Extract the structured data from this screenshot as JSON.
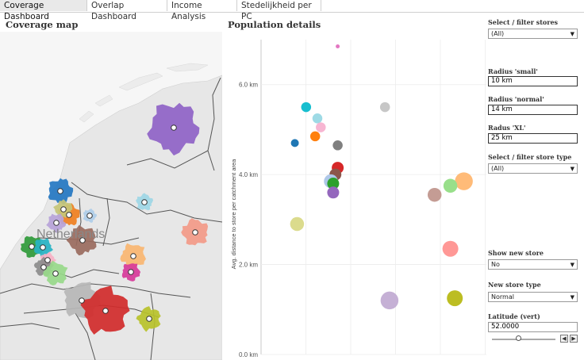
{
  "tabs": [
    {
      "label": "Coverage Dashboard",
      "active": true
    },
    {
      "label": "Overlap Dashboard",
      "active": false
    },
    {
      "label": "Income Analysis",
      "active": false
    },
    {
      "label": "Stedelijkheid per PC",
      "active": false
    }
  ],
  "map": {
    "title": "Coverage map",
    "country_label": "Netherlands",
    "colors": {
      "land": "#e7e7e7",
      "water": "#f6f6f6",
      "border": "#555555"
    },
    "regions": [
      {
        "color": "#8f63c7"
      },
      {
        "color": "#2477c2"
      },
      {
        "color": "#f07f1f"
      },
      {
        "color": "#c6c678"
      },
      {
        "color": "#9a6b5e"
      },
      {
        "color": "#b7a3d9"
      },
      {
        "color": "#aecde9"
      },
      {
        "color": "#9ed7e6"
      },
      {
        "color": "#f39a88"
      },
      {
        "color": "#2f9a3a"
      },
      {
        "color": "#27b3c4"
      },
      {
        "color": "#f9b1c6"
      },
      {
        "color": "#8c8c8c"
      },
      {
        "color": "#98d98a"
      },
      {
        "color": "#fab671"
      },
      {
        "color": "#d73a9a"
      },
      {
        "color": "#b7b7b7"
      },
      {
        "color": "#d12b2b"
      },
      {
        "color": "#b9c22a"
      }
    ]
  },
  "population": {
    "title": "Population  details",
    "y_axis_label": "Avg. distance to store per catchment area"
  },
  "chart_data": {
    "type": "scatter",
    "title": "Population  details",
    "ylabel": "Avg. distance to store per catchment area",
    "y_ticks": [
      "0.0 km",
      "2.0 km",
      "4.0 km",
      "6.0 km"
    ],
    "ylim": [
      0,
      7.0
    ],
    "xlim": [
      0,
      100
    ],
    "grid": true,
    "points": [
      {
        "x": 34,
        "y": 6.85,
        "size": 2,
        "color": "#e377c2"
      },
      {
        "x": 20,
        "y": 5.5,
        "size": 5,
        "color": "#17becf"
      },
      {
        "x": 55,
        "y": 5.5,
        "size": 5,
        "color": "#c7c7c7"
      },
      {
        "x": 25,
        "y": 5.25,
        "size": 5,
        "color": "#9edae5"
      },
      {
        "x": 26.5,
        "y": 5.05,
        "size": 5,
        "color": "#f7b6d2"
      },
      {
        "x": 24,
        "y": 4.85,
        "size": 5,
        "color": "#ff7f0e"
      },
      {
        "x": 15,
        "y": 4.7,
        "size": 4,
        "color": "#1f77b4"
      },
      {
        "x": 34,
        "y": 4.65,
        "size": 5,
        "color": "#7f7f7f"
      },
      {
        "x": 34,
        "y": 4.15,
        "size": 6,
        "color": "#d62728"
      },
      {
        "x": 33,
        "y": 4.0,
        "size": 6,
        "color": "#8c564b"
      },
      {
        "x": 31,
        "y": 3.85,
        "size": 7,
        "color": "#aec7e8"
      },
      {
        "x": 32,
        "y": 3.8,
        "size": 6,
        "color": "#2ca02c"
      },
      {
        "x": 32,
        "y": 3.6,
        "size": 6,
        "color": "#9467bd"
      },
      {
        "x": 90,
        "y": 3.85,
        "size": 9,
        "color": "#ffbb78"
      },
      {
        "x": 84,
        "y": 3.75,
        "size": 7,
        "color": "#98df8a"
      },
      {
        "x": 77,
        "y": 3.55,
        "size": 7,
        "color": "#c49c94"
      },
      {
        "x": 16,
        "y": 2.9,
        "size": 7,
        "color": "#dbdb8d"
      },
      {
        "x": 84,
        "y": 2.35,
        "size": 8,
        "color": "#ff9896"
      },
      {
        "x": 57,
        "y": 1.2,
        "size": 9,
        "color": "#c5b0d5"
      },
      {
        "x": 86,
        "y": 1.25,
        "size": 8,
        "color": "#bcbd22"
      }
    ]
  },
  "controls": {
    "filter_stores_label": "Select / filter stores",
    "filter_stores_value": "(All)",
    "radius_small_label": "Radius  'small'",
    "radius_small_value": "10 km",
    "radius_normal_label": "Radius  'normal'",
    "radius_normal_value": "14 km",
    "radius_xl_label": "Radus  'XL'",
    "radius_xl_value": "25 km",
    "filter_type_label": "Select / filter store type",
    "filter_type_value": "(All)",
    "show_new_label": "Show new store",
    "show_new_value": "No",
    "new_type_label": "New store type",
    "new_type_value": "Normal",
    "latitude_label": "Latitude  (vert)",
    "latitude_value": "52.0000",
    "latitude_slider_fraction": 0.42
  }
}
